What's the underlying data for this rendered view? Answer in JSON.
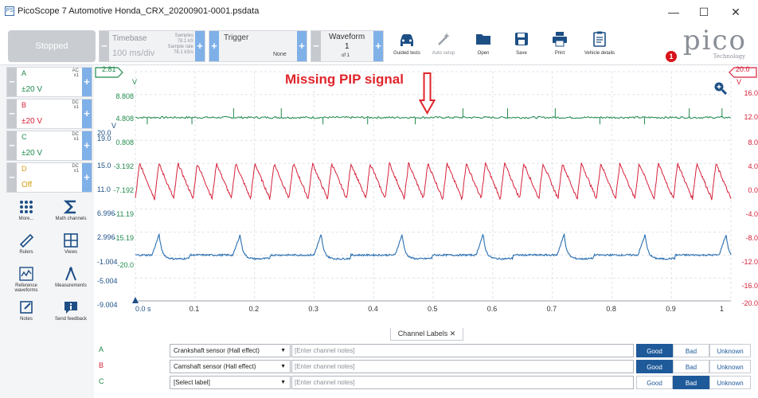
{
  "window": {
    "title": "PicoScope 7 Automotive Honda_CRX_20200901-0001.psdata",
    "app_icon_text": "PS",
    "controls": {
      "minimize": "—",
      "maximize": "☐",
      "close": "✕"
    }
  },
  "toolbar": {
    "run_state": "Stopped",
    "timebase": {
      "label": "Timebase",
      "value": "100 ms/div",
      "samples_label": "Samples",
      "samples_value": "78.1 kS",
      "rate_label": "Sample rate",
      "rate_value": "78.1 kS/s"
    },
    "trigger": {
      "label": "Trigger",
      "mode": "None"
    },
    "waveform": {
      "label": "Waveform",
      "current": "1",
      "of": "of 1"
    },
    "tools": [
      {
        "label": "Guided tests",
        "icon": "car-icon",
        "enabled": true
      },
      {
        "label": "Auto setup",
        "icon": "magic-wand-icon",
        "enabled": false
      },
      {
        "label": "Open",
        "icon": "folder-icon",
        "enabled": true
      },
      {
        "label": "Save",
        "icon": "save-icon",
        "enabled": true
      },
      {
        "label": "Print",
        "icon": "printer-icon",
        "enabled": true
      },
      {
        "label": "Vehicle details",
        "icon": "clipboard-icon",
        "enabled": true
      }
    ],
    "logo_word": "pico",
    "logo_sub": "Technology",
    "notification_count": "1"
  },
  "channels": [
    {
      "letter": "A",
      "coupling": "AC",
      "probe": "x1",
      "range": "±20 V",
      "color": "#1f8a4c"
    },
    {
      "letter": "B",
      "coupling": "DC",
      "probe": "x1",
      "range": "±20 V",
      "color": "#d6213a"
    },
    {
      "letter": "C",
      "coupling": "DC",
      "probe": "x1",
      "range": "±20 V",
      "color": "#1f8a4c"
    },
    {
      "letter": "D",
      "coupling": "DC",
      "probe": "x1",
      "range": "Off",
      "color": "#d4a017"
    }
  ],
  "side_tools": [
    {
      "label": "More...",
      "icon": "grid-dots-icon"
    },
    {
      "label": "Math channels",
      "icon": "sigma-icon"
    },
    {
      "label": "Rulers",
      "icon": "ruler-icon"
    },
    {
      "label": "Views",
      "icon": "views-grid-icon"
    },
    {
      "label": "Reference waveforms",
      "icon": "reference-waveform-icon"
    },
    {
      "label": "Measurements",
      "icon": "measurement-icon"
    },
    {
      "label": "Notes",
      "icon": "notes-icon"
    },
    {
      "label": "Send feedback",
      "icon": "feedback-icon"
    }
  ],
  "plot": {
    "annotation": "Missing PIP signal",
    "left_ruler_value": "2.81",
    "left_ruler_unit": "V",
    "right_ruler_value": "20.0",
    "right_ruler_unit": "V",
    "x_start_label": "0.0 s",
    "left_axis_green": [
      "8.808",
      "4.808",
      "0.808",
      "-3.192",
      "-7.192",
      "-11.19",
      "-15.19",
      "-20.0"
    ],
    "left_axis_black": [
      "20.0",
      "19.0",
      "15.0",
      "11.0",
      "6.996",
      "2.996",
      "-1.004",
      "-5.004",
      "-9.004"
    ],
    "right_axis": [
      "16.0",
      "12.0",
      "8.0",
      "4.0",
      "0.0",
      "-4.0",
      "-8.0",
      "-12.0",
      "-16.0",
      "-20.0"
    ],
    "left_axis_unit": "V"
  },
  "chart_data": {
    "type": "line",
    "x": [
      0.0,
      0.1,
      0.2,
      0.3,
      0.4,
      0.5,
      0.6,
      0.7,
      0.8,
      0.9,
      1.0
    ],
    "xlim": [
      0.0,
      1.0
    ],
    "series": [
      {
        "name": "A",
        "color": "#1f8a4c",
        "description_points": [
          [
            0.0,
            12.0
          ],
          [
            0.5,
            12.0
          ],
          [
            1.0,
            12.0
          ]
        ]
      },
      {
        "name": "B",
        "color": "#d6213a",
        "description_points": [
          [
            0.0,
            0.0
          ],
          [
            0.5,
            0.0
          ],
          [
            1.0,
            0.0
          ]
        ]
      },
      {
        "name": "C",
        "color": "#2a6fb0",
        "description_points": [
          [
            0.0,
            -12.0
          ],
          [
            0.5,
            -12.0
          ],
          [
            1.0,
            -12.0
          ]
        ]
      }
    ],
    "ylim": [
      -20.0,
      20.0
    ],
    "grid": true
  },
  "channel_labels": {
    "tab_label": "Channel Labels",
    "rows": [
      {
        "letter": "A",
        "label": "Crankshaft sensor (Hall effect)",
        "notes_placeholder": "[Enter channel notes]",
        "verdict": "Good"
      },
      {
        "letter": "B",
        "label": "Camshaft sensor (Hall effect)",
        "notes_placeholder": "[Enter channel notes]",
        "verdict": "Good"
      },
      {
        "letter": "C",
        "label": "[Select label]",
        "notes_placeholder": "[Enter channel notes]",
        "verdict": "Bad"
      }
    ],
    "verdict_options": [
      "Good",
      "Bad",
      "Unknown"
    ]
  }
}
